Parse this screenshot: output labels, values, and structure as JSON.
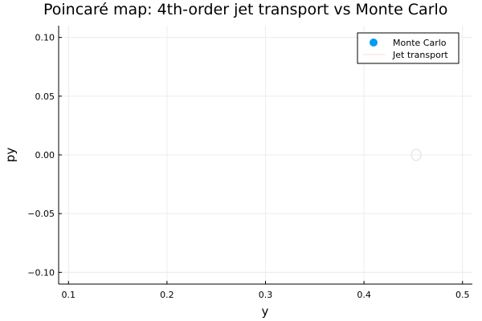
{
  "chart_data": {
    "type": "scatter",
    "title": "Poincaré map: 4th-order jet transport vs Monte Carlo",
    "xlabel": "y",
    "ylabel": "py",
    "xlim": [
      0.09,
      0.51
    ],
    "ylim": [
      -0.11,
      0.11
    ],
    "xticks": [
      0.1,
      0.2,
      0.3,
      0.4,
      0.5
    ],
    "xtick_labels": [
      "0.1",
      "0.2",
      "0.3",
      "0.4",
      "0.5"
    ],
    "yticks": [
      0.1,
      0.05,
      0.0,
      -0.05,
      -0.1
    ],
    "ytick_labels": [
      "0.10",
      "0.05",
      "0.00",
      "−0.05",
      "−0.10"
    ],
    "grid": true,
    "legend_position": "top-right",
    "series": [
      {
        "name": "Monte Carlo",
        "kind": "scatter",
        "color": "#009af9",
        "points": []
      },
      {
        "name": "Jet transport",
        "kind": "line",
        "color": "#e26f46",
        "center": [
          0.453,
          0.0
        ]
      }
    ]
  },
  "colors": {
    "grid": "#ececec",
    "axis": "#000000",
    "faint_marker": "#e3e3e3"
  }
}
